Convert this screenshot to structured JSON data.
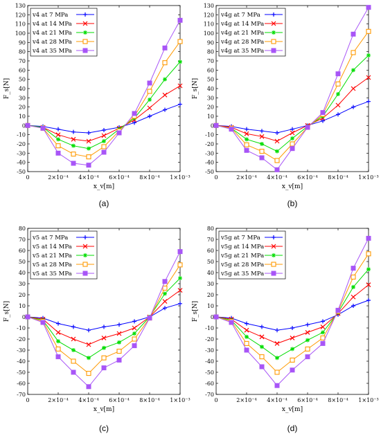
{
  "figure": {
    "panel_labels": [
      "(a)",
      "(b)",
      "(c)",
      "(d)"
    ],
    "series_colors": [
      "#0000ff",
      "#ff0000",
      "#00dd00",
      "#ff9900",
      "#a855f7"
    ]
  },
  "chart_data": [
    {
      "type": "line",
      "panel": "(a)",
      "xlabel": "x_v[m]",
      "ylabel": "F_s[N]",
      "xlim": [
        0,
        0.001
      ],
      "ylim": [
        -50,
        130
      ],
      "yticks": [
        -50,
        -40,
        -30,
        -20,
        -10,
        0,
        10,
        20,
        30,
        40,
        50,
        60,
        70,
        80,
        90,
        100,
        110,
        120,
        130
      ],
      "xticks": [
        0,
        0.0002,
        0.0004,
        0.0006,
        0.0008,
        0.001
      ],
      "xtick_labels": [
        "0",
        "2×10⁻⁴",
        "4×10⁻⁴",
        "6×10⁻⁴",
        "8×10⁻⁴",
        "1×10⁻³"
      ],
      "x": [
        0,
        0.0001,
        0.0002,
        0.0003,
        0.0004,
        0.0005,
        0.0006,
        0.0007,
        0.0008,
        0.0009,
        0.001
      ],
      "legend_position": "top-left",
      "series": [
        {
          "name": "v4 at 7 MPa",
          "values": [
            0,
            -1,
            -4,
            -7,
            -8,
            -5,
            -2,
            3,
            10,
            17,
            23
          ]
        },
        {
          "name": "v4 at 14 MPa",
          "values": [
            0,
            -2,
            -10,
            -15,
            -17,
            -11,
            -3,
            6,
            19,
            33,
            43
          ]
        },
        {
          "name": "v4 at 21 MPa",
          "values": [
            0,
            -2,
            -15,
            -22,
            -25,
            -17,
            -4,
            8,
            28,
            50,
            69
          ]
        },
        {
          "name": "v4 at 28 MPa",
          "values": [
            0,
            -3,
            -22,
            -31,
            -34,
            -23,
            -6,
            10,
            37,
            68,
            91
          ]
        },
        {
          "name": "v4 at 35 MPa",
          "values": [
            0,
            -3,
            -30,
            -41,
            -43,
            -29,
            -8,
            13,
            46,
            84,
            114
          ]
        }
      ]
    },
    {
      "type": "line",
      "panel": "(b)",
      "xlabel": "x_v[m]",
      "ylabel": "F_s[N]",
      "xlim": [
        0,
        0.001
      ],
      "ylim": [
        -50,
        130
      ],
      "yticks": [
        -50,
        -40,
        -30,
        -20,
        -10,
        0,
        10,
        20,
        30,
        40,
        50,
        60,
        70,
        80,
        90,
        100,
        110,
        120,
        130
      ],
      "xticks": [
        0,
        0.0002,
        0.0004,
        0.0006,
        0.0008,
        0.001
      ],
      "xtick_labels": [
        "0",
        "2×10⁻⁴",
        "4×10⁻⁴",
        "6×10⁻⁴",
        "8×10⁻⁴",
        "1×10⁻³"
      ],
      "x": [
        0,
        0.0001,
        0.0002,
        0.0003,
        0.0004,
        0.0005,
        0.0006,
        0.0007,
        0.0008,
        0.0009,
        0.001
      ],
      "legend_position": "top-left",
      "series": [
        {
          "name": "v4g at 7 MPa",
          "values": [
            0,
            -1,
            -4,
            -6,
            -8,
            -4,
            0,
            5,
            12,
            20,
            26
          ]
        },
        {
          "name": "v4g at 14 MPa",
          "values": [
            0,
            -2,
            -9,
            -12,
            -17,
            -8,
            0,
            8,
            22,
            40,
            52
          ]
        },
        {
          "name": "v4g at 21 MPa",
          "values": [
            0,
            -3,
            -15,
            -20,
            -28,
            -14,
            -1,
            10,
            34,
            60,
            76
          ]
        },
        {
          "name": "v4g at 28 MPa",
          "values": [
            0,
            -3,
            -21,
            -28,
            -38,
            -20,
            -2,
            12,
            45,
            79,
            102
          ]
        },
        {
          "name": "v4g at 35 MPa",
          "values": [
            0,
            -4,
            -27,
            -35,
            -48,
            -25,
            -2,
            14,
            56,
            99,
            128
          ]
        }
      ]
    },
    {
      "type": "line",
      "panel": "(c)",
      "xlabel": "x_v[m]",
      "ylabel": "F_s[N]",
      "xlim": [
        0,
        0.001
      ],
      "ylim": [
        -70,
        80
      ],
      "yticks": [
        -70,
        -60,
        -50,
        -40,
        -30,
        -20,
        -10,
        0,
        10,
        20,
        30,
        40,
        50,
        60,
        70,
        80
      ],
      "xticks": [
        0,
        0.0002,
        0.0004,
        0.0006,
        0.0008,
        0.001
      ],
      "xtick_labels": [
        "0",
        "2×10⁻⁴",
        "4×10⁻⁴",
        "6×10⁻⁴",
        "8×10⁻⁴",
        "1×10⁻³"
      ],
      "x": [
        0,
        0.0001,
        0.0002,
        0.0003,
        0.0004,
        0.0005,
        0.0006,
        0.0007,
        0.0008,
        0.0009,
        0.001
      ],
      "legend_position": "top-left",
      "series": [
        {
          "name": "v5 at 7 MPa",
          "values": [
            0,
            -1,
            -6,
            -9,
            -12,
            -9,
            -7,
            -4,
            0,
            8,
            12
          ]
        },
        {
          "name": "v5 at 14 MPa",
          "values": [
            0,
            -2,
            -14,
            -20,
            -25,
            -19,
            -15,
            -10,
            0,
            14,
            24
          ]
        },
        {
          "name": "v5 at 21 MPa",
          "values": [
            0,
            -3,
            -22,
            -30,
            -37,
            -28,
            -23,
            -15,
            0,
            21,
            35
          ]
        },
        {
          "name": "v5 at 28 MPa",
          "values": [
            0,
            -4,
            -29,
            -40,
            -51,
            -37,
            -31,
            -20,
            -1,
            26,
            47
          ]
        },
        {
          "name": "v5 at 35 MPa",
          "values": [
            0,
            -5,
            -36,
            -50,
            -63,
            -46,
            -39,
            -26,
            -1,
            32,
            59
          ]
        }
      ]
    },
    {
      "type": "line",
      "panel": "(d)",
      "xlabel": "x_v[m]",
      "ylabel": "F_s[N]",
      "xlim": [
        0,
        0.001
      ],
      "ylim": [
        -70,
        80
      ],
      "yticks": [
        -70,
        -60,
        -50,
        -40,
        -30,
        -20,
        -10,
        0,
        10,
        20,
        30,
        40,
        50,
        60,
        70,
        80
      ],
      "xticks": [
        0,
        0.0002,
        0.0004,
        0.0006,
        0.0008,
        0.001
      ],
      "xtick_labels": [
        "0",
        "2×10⁻⁴",
        "4×10⁻⁴",
        "6×10⁻⁴",
        "8×10⁻⁴",
        "1×10⁻³"
      ],
      "x": [
        0,
        0.0001,
        0.0002,
        0.0003,
        0.0004,
        0.0005,
        0.0006,
        0.0007,
        0.0008,
        0.0009,
        0.001
      ],
      "legend_position": "top-left",
      "series": [
        {
          "name": "v5g at 7 MPa",
          "values": [
            0,
            -1,
            -6,
            -9,
            -12,
            -10,
            -7,
            -4,
            2,
            10,
            15
          ]
        },
        {
          "name": "v5g at 14 MPa",
          "values": [
            0,
            -2,
            -12,
            -18,
            -24,
            -19,
            -14,
            -9,
            3,
            18,
            29
          ]
        },
        {
          "name": "v5g at 21 MPa",
          "values": [
            0,
            -3,
            -18,
            -27,
            -37,
            -29,
            -21,
            -14,
            4,
            27,
            43
          ]
        },
        {
          "name": "v5g at 28 MPa",
          "values": [
            0,
            -4,
            -24,
            -36,
            -50,
            -39,
            -29,
            -19,
            5,
            36,
            57
          ]
        },
        {
          "name": "v5g at 35 MPa",
          "values": [
            0,
            -5,
            -30,
            -45,
            -62,
            -48,
            -36,
            -24,
            6,
            44,
            71
          ]
        }
      ]
    }
  ]
}
